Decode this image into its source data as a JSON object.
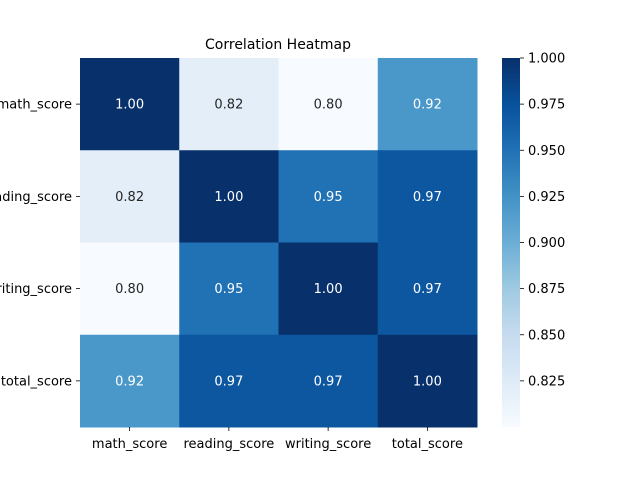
{
  "chart_data": {
    "type": "heatmap",
    "title": "Correlation Heatmap",
    "row_labels": [
      "math_score",
      "reading_score",
      "writing_score",
      "total_score"
    ],
    "col_labels": [
      "math_score",
      "reading_score",
      "writing_score",
      "total_score"
    ],
    "values": [
      [
        1.0,
        0.82,
        0.8,
        0.92
      ],
      [
        0.82,
        1.0,
        0.95,
        0.97
      ],
      [
        0.8,
        0.95,
        1.0,
        0.97
      ],
      [
        0.92,
        0.97,
        0.97,
        1.0
      ]
    ],
    "annotation_format": "2 decimals",
    "colormap": "Blues",
    "color_range": [
      0.8,
      1.0
    ],
    "colorbar_ticks": [
      "0.825",
      "0.850",
      "0.875",
      "0.900",
      "0.925",
      "0.950",
      "0.975",
      "1.000"
    ],
    "colorbar_tick_values": [
      0.825,
      0.85,
      0.875,
      0.9,
      0.925,
      0.95,
      0.975,
      1.0
    ]
  }
}
